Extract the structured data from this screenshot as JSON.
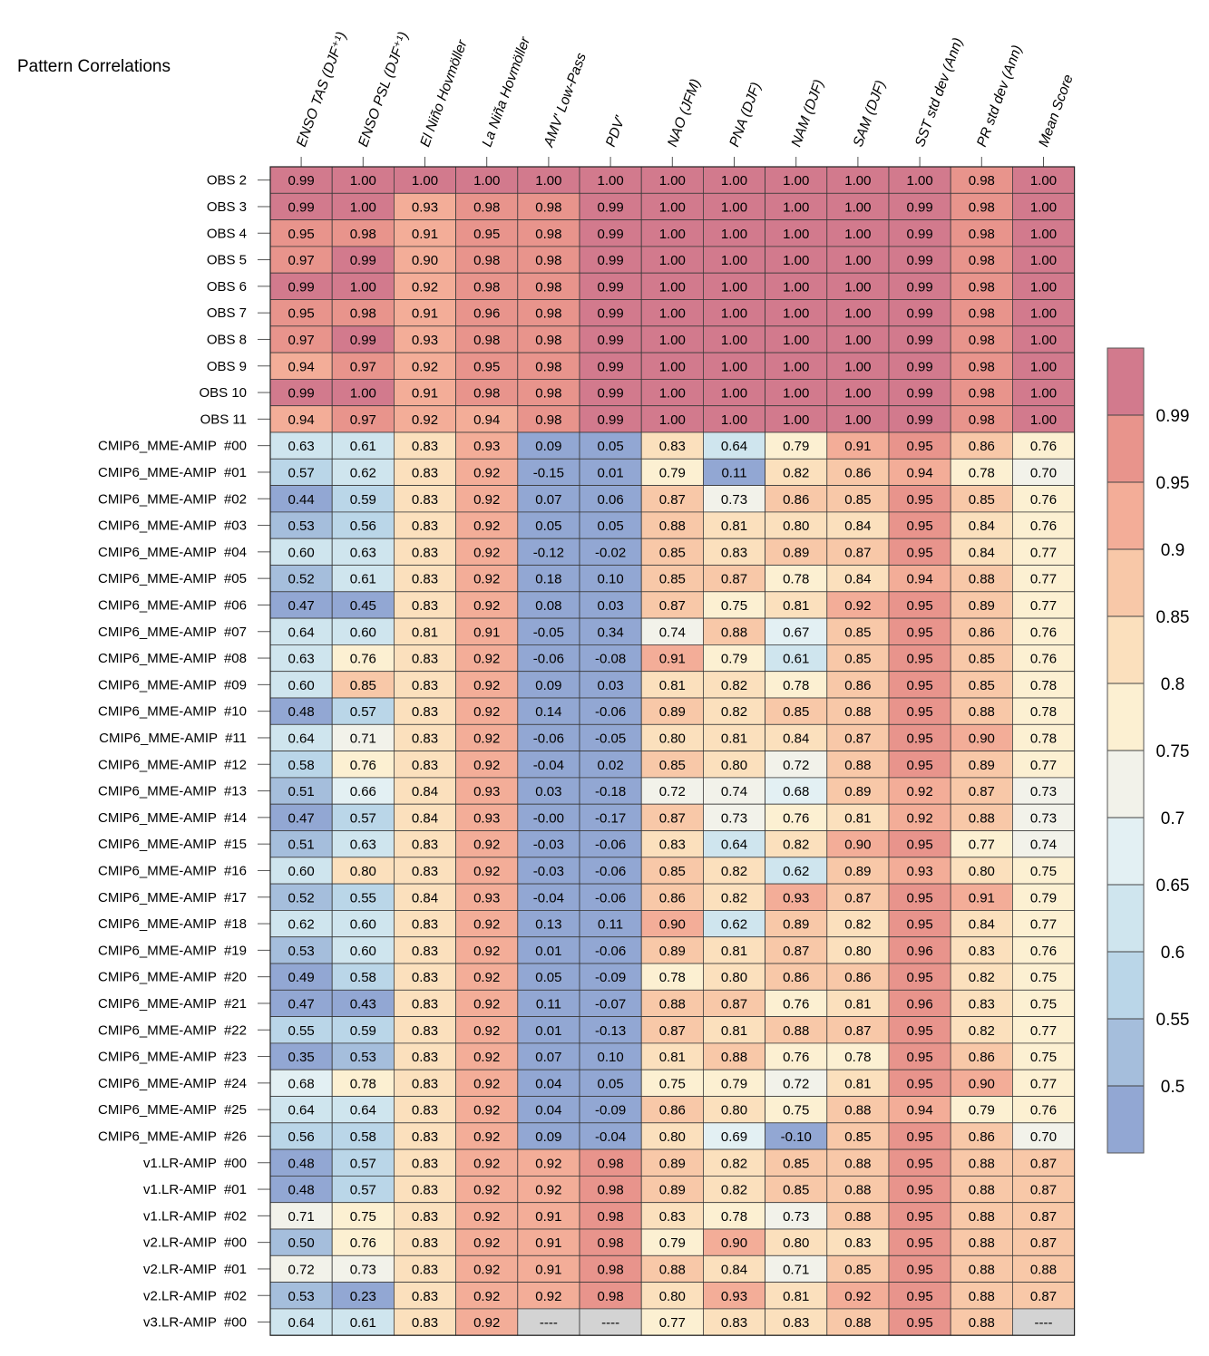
{
  "chart_data": {
    "type": "heatmap",
    "title": "Pattern Correlations",
    "columns": [
      "ENSO TAS (DJF⁺¹)",
      "ENSO PSL (DJF⁺¹)",
      "El Niño Hovmöller",
      "La Niña Hovmöller",
      "AMV' Low-Pass",
      "PDV'",
      "NAO (JFM)",
      "PNA (DJF)",
      "NAM (DJF)",
      "SAM (DJF)",
      "SST std dev (Ann)",
      "PR std dev (Ann)",
      "Mean Score"
    ],
    "rows": [
      {
        "label": "OBS 2",
        "values": [
          "0.99",
          "1.00",
          "1.00",
          "1.00",
          "1.00",
          "1.00",
          "1.00",
          "1.00",
          "1.00",
          "1.00",
          "1.00",
          "0.98",
          "1.00"
        ]
      },
      {
        "label": "OBS 3",
        "values": [
          "0.99",
          "1.00",
          "0.93",
          "0.98",
          "0.98",
          "0.99",
          "1.00",
          "1.00",
          "1.00",
          "1.00",
          "0.99",
          "0.98",
          "1.00"
        ]
      },
      {
        "label": "OBS 4",
        "values": [
          "0.95",
          "0.98",
          "0.91",
          "0.95",
          "0.98",
          "0.99",
          "1.00",
          "1.00",
          "1.00",
          "1.00",
          "0.99",
          "0.98",
          "1.00"
        ]
      },
      {
        "label": "OBS 5",
        "values": [
          "0.97",
          "0.99",
          "0.90",
          "0.98",
          "0.98",
          "0.99",
          "1.00",
          "1.00",
          "1.00",
          "1.00",
          "0.99",
          "0.98",
          "1.00"
        ]
      },
      {
        "label": "OBS 6",
        "values": [
          "0.99",
          "1.00",
          "0.92",
          "0.98",
          "0.98",
          "0.99",
          "1.00",
          "1.00",
          "1.00",
          "1.00",
          "0.99",
          "0.98",
          "1.00"
        ]
      },
      {
        "label": "OBS 7",
        "values": [
          "0.95",
          "0.98",
          "0.91",
          "0.96",
          "0.98",
          "0.99",
          "1.00",
          "1.00",
          "1.00",
          "1.00",
          "0.99",
          "0.98",
          "1.00"
        ]
      },
      {
        "label": "OBS 8",
        "values": [
          "0.97",
          "0.99",
          "0.93",
          "0.98",
          "0.98",
          "0.99",
          "1.00",
          "1.00",
          "1.00",
          "1.00",
          "0.99",
          "0.98",
          "1.00"
        ]
      },
      {
        "label": "OBS 9",
        "values": [
          "0.94",
          "0.97",
          "0.92",
          "0.95",
          "0.98",
          "0.99",
          "1.00",
          "1.00",
          "1.00",
          "1.00",
          "0.99",
          "0.98",
          "1.00"
        ]
      },
      {
        "label": "OBS 10",
        "values": [
          "0.99",
          "1.00",
          "0.91",
          "0.98",
          "0.98",
          "0.99",
          "1.00",
          "1.00",
          "1.00",
          "1.00",
          "0.99",
          "0.98",
          "1.00"
        ]
      },
      {
        "label": "OBS 11",
        "values": [
          "0.94",
          "0.97",
          "0.92",
          "0.94",
          "0.98",
          "0.99",
          "1.00",
          "1.00",
          "1.00",
          "1.00",
          "0.99",
          "0.98",
          "1.00"
        ]
      },
      {
        "label": "CMIP6_MME-AMIP  #00",
        "values": [
          "0.63",
          "0.61",
          "0.83",
          "0.93",
          "0.09",
          "0.05",
          "0.83",
          "0.64",
          "0.79",
          "0.91",
          "0.95",
          "0.86",
          "0.76"
        ]
      },
      {
        "label": "CMIP6_MME-AMIP  #01",
        "values": [
          "0.57",
          "0.62",
          "0.83",
          "0.92",
          "-0.15",
          "0.01",
          "0.79",
          "0.11",
          "0.82",
          "0.86",
          "0.94",
          "0.78",
          "0.70"
        ]
      },
      {
        "label": "CMIP6_MME-AMIP  #02",
        "values": [
          "0.44",
          "0.59",
          "0.83",
          "0.92",
          "0.07",
          "0.06",
          "0.87",
          "0.73",
          "0.86",
          "0.85",
          "0.95",
          "0.85",
          "0.76"
        ]
      },
      {
        "label": "CMIP6_MME-AMIP  #03",
        "values": [
          "0.53",
          "0.56",
          "0.83",
          "0.92",
          "0.05",
          "0.05",
          "0.88",
          "0.81",
          "0.80",
          "0.84",
          "0.95",
          "0.84",
          "0.76"
        ]
      },
      {
        "label": "CMIP6_MME-AMIP  #04",
        "values": [
          "0.60",
          "0.63",
          "0.83",
          "0.92",
          "-0.12",
          "-0.02",
          "0.85",
          "0.83",
          "0.89",
          "0.87",
          "0.95",
          "0.84",
          "0.77"
        ]
      },
      {
        "label": "CMIP6_MME-AMIP  #05",
        "values": [
          "0.52",
          "0.61",
          "0.83",
          "0.92",
          "0.18",
          "0.10",
          "0.85",
          "0.87",
          "0.78",
          "0.84",
          "0.94",
          "0.88",
          "0.77"
        ]
      },
      {
        "label": "CMIP6_MME-AMIP  #06",
        "values": [
          "0.47",
          "0.45",
          "0.83",
          "0.92",
          "0.08",
          "0.03",
          "0.87",
          "0.75",
          "0.81",
          "0.92",
          "0.95",
          "0.89",
          "0.77"
        ]
      },
      {
        "label": "CMIP6_MME-AMIP  #07",
        "values": [
          "0.64",
          "0.60",
          "0.81",
          "0.91",
          "-0.05",
          "0.34",
          "0.74",
          "0.88",
          "0.67",
          "0.85",
          "0.95",
          "0.86",
          "0.76"
        ]
      },
      {
        "label": "CMIP6_MME-AMIP  #08",
        "values": [
          "0.63",
          "0.76",
          "0.83",
          "0.92",
          "-0.06",
          "-0.08",
          "0.91",
          "0.79",
          "0.61",
          "0.85",
          "0.95",
          "0.85",
          "0.76"
        ]
      },
      {
        "label": "CMIP6_MME-AMIP  #09",
        "values": [
          "0.60",
          "0.85",
          "0.83",
          "0.92",
          "0.09",
          "0.03",
          "0.81",
          "0.82",
          "0.78",
          "0.86",
          "0.95",
          "0.85",
          "0.78"
        ]
      },
      {
        "label": "CMIP6_MME-AMIP  #10",
        "values": [
          "0.48",
          "0.57",
          "0.83",
          "0.92",
          "0.14",
          "-0.06",
          "0.89",
          "0.82",
          "0.85",
          "0.88",
          "0.95",
          "0.88",
          "0.78"
        ]
      },
      {
        "label": "CMIP6_MME-AMIP  #11",
        "values": [
          "0.64",
          "0.71",
          "0.83",
          "0.92",
          "-0.06",
          "-0.05",
          "0.80",
          "0.81",
          "0.84",
          "0.87",
          "0.95",
          "0.90",
          "0.78"
        ]
      },
      {
        "label": "CMIP6_MME-AMIP  #12",
        "values": [
          "0.58",
          "0.76",
          "0.83",
          "0.92",
          "-0.04",
          "0.02",
          "0.85",
          "0.80",
          "0.72",
          "0.88",
          "0.95",
          "0.89",
          "0.77"
        ]
      },
      {
        "label": "CMIP6_MME-AMIP  #13",
        "values": [
          "0.51",
          "0.66",
          "0.84",
          "0.93",
          "0.03",
          "-0.18",
          "0.72",
          "0.74",
          "0.68",
          "0.89",
          "0.92",
          "0.87",
          "0.73"
        ]
      },
      {
        "label": "CMIP6_MME-AMIP  #14",
        "values": [
          "0.47",
          "0.57",
          "0.84",
          "0.93",
          "-0.00",
          "-0.17",
          "0.87",
          "0.73",
          "0.76",
          "0.81",
          "0.92",
          "0.88",
          "0.73"
        ]
      },
      {
        "label": "CMIP6_MME-AMIP  #15",
        "values": [
          "0.51",
          "0.63",
          "0.83",
          "0.92",
          "-0.03",
          "-0.06",
          "0.83",
          "0.64",
          "0.82",
          "0.90",
          "0.95",
          "0.77",
          "0.74"
        ]
      },
      {
        "label": "CMIP6_MME-AMIP  #16",
        "values": [
          "0.60",
          "0.80",
          "0.83",
          "0.92",
          "-0.03",
          "-0.06",
          "0.85",
          "0.82",
          "0.62",
          "0.89",
          "0.93",
          "0.80",
          "0.75"
        ]
      },
      {
        "label": "CMIP6_MME-AMIP  #17",
        "values": [
          "0.52",
          "0.55",
          "0.84",
          "0.93",
          "-0.04",
          "-0.06",
          "0.86",
          "0.82",
          "0.93",
          "0.87",
          "0.95",
          "0.91",
          "0.79"
        ]
      },
      {
        "label": "CMIP6_MME-AMIP  #18",
        "values": [
          "0.62",
          "0.60",
          "0.83",
          "0.92",
          "0.13",
          "0.11",
          "0.90",
          "0.62",
          "0.89",
          "0.82",
          "0.95",
          "0.84",
          "0.77"
        ]
      },
      {
        "label": "CMIP6_MME-AMIP  #19",
        "values": [
          "0.53",
          "0.60",
          "0.83",
          "0.92",
          "0.01",
          "-0.06",
          "0.89",
          "0.81",
          "0.87",
          "0.80",
          "0.96",
          "0.83",
          "0.76"
        ]
      },
      {
        "label": "CMIP6_MME-AMIP  #20",
        "values": [
          "0.49",
          "0.58",
          "0.83",
          "0.92",
          "0.05",
          "-0.09",
          "0.78",
          "0.80",
          "0.86",
          "0.86",
          "0.95",
          "0.82",
          "0.75"
        ]
      },
      {
        "label": "CMIP6_MME-AMIP  #21",
        "values": [
          "0.47",
          "0.43",
          "0.83",
          "0.92",
          "0.11",
          "-0.07",
          "0.88",
          "0.87",
          "0.76",
          "0.81",
          "0.96",
          "0.83",
          "0.75"
        ]
      },
      {
        "label": "CMIP6_MME-AMIP  #22",
        "values": [
          "0.55",
          "0.59",
          "0.83",
          "0.92",
          "0.01",
          "-0.13",
          "0.87",
          "0.81",
          "0.88",
          "0.87",
          "0.95",
          "0.82",
          "0.77"
        ]
      },
      {
        "label": "CMIP6_MME-AMIP  #23",
        "values": [
          "0.35",
          "0.53",
          "0.83",
          "0.92",
          "0.07",
          "0.10",
          "0.81",
          "0.88",
          "0.76",
          "0.78",
          "0.95",
          "0.86",
          "0.75"
        ]
      },
      {
        "label": "CMIP6_MME-AMIP  #24",
        "values": [
          "0.68",
          "0.78",
          "0.83",
          "0.92",
          "0.04",
          "0.05",
          "0.75",
          "0.79",
          "0.72",
          "0.81",
          "0.95",
          "0.90",
          "0.77"
        ]
      },
      {
        "label": "CMIP6_MME-AMIP  #25",
        "values": [
          "0.64",
          "0.64",
          "0.83",
          "0.92",
          "0.04",
          "-0.09",
          "0.86",
          "0.80",
          "0.75",
          "0.88",
          "0.94",
          "0.79",
          "0.76"
        ]
      },
      {
        "label": "CMIP6_MME-AMIP  #26",
        "values": [
          "0.56",
          "0.58",
          "0.83",
          "0.92",
          "0.09",
          "-0.04",
          "0.80",
          "0.69",
          "-0.10",
          "0.85",
          "0.95",
          "0.86",
          "0.70"
        ]
      },
      {
        "label": "v1.LR-AMIP  #00",
        "values": [
          "0.48",
          "0.57",
          "0.83",
          "0.92",
          "0.92",
          "0.98",
          "0.89",
          "0.82",
          "0.85",
          "0.88",
          "0.95",
          "0.88",
          "0.87"
        ]
      },
      {
        "label": "v1.LR-AMIP  #01",
        "values": [
          "0.48",
          "0.57",
          "0.83",
          "0.92",
          "0.92",
          "0.98",
          "0.89",
          "0.82",
          "0.85",
          "0.88",
          "0.95",
          "0.88",
          "0.87"
        ]
      },
      {
        "label": "v1.LR-AMIP  #02",
        "values": [
          "0.71",
          "0.75",
          "0.83",
          "0.92",
          "0.91",
          "0.98",
          "0.83",
          "0.78",
          "0.73",
          "0.88",
          "0.95",
          "0.88",
          "0.87"
        ]
      },
      {
        "label": "v2.LR-AMIP  #00",
        "values": [
          "0.50",
          "0.76",
          "0.83",
          "0.92",
          "0.91",
          "0.98",
          "0.79",
          "0.90",
          "0.80",
          "0.83",
          "0.95",
          "0.88",
          "0.87"
        ]
      },
      {
        "label": "v2.LR-AMIP  #01",
        "values": [
          "0.72",
          "0.73",
          "0.83",
          "0.92",
          "0.91",
          "0.98",
          "0.88",
          "0.84",
          "0.71",
          "0.85",
          "0.95",
          "0.88",
          "0.88"
        ]
      },
      {
        "label": "v2.LR-AMIP  #02",
        "values": [
          "0.53",
          "0.23",
          "0.83",
          "0.92",
          "0.92",
          "0.98",
          "0.80",
          "0.93",
          "0.81",
          "0.92",
          "0.95",
          "0.88",
          "0.87"
        ]
      },
      {
        "label": "v3.LR-AMIP  #00",
        "values": [
          "0.64",
          "0.61",
          "0.83",
          "0.92",
          "----",
          "----",
          "0.77",
          "0.83",
          "0.83",
          "0.88",
          "0.95",
          "0.88",
          "----"
        ]
      }
    ],
    "missing_text": "----",
    "colorbar": {
      "boundaries": [
        0.99,
        0.95,
        0.9,
        0.85,
        0.8,
        0.75,
        0.7,
        0.65,
        0.6,
        0.55,
        0.5
      ],
      "labels": [
        "0.99",
        "0.95",
        "0.9",
        "0.85",
        "0.8",
        "0.75",
        "0.7",
        "0.65",
        "0.6",
        "0.55",
        "0.5"
      ],
      "colors": [
        "#d27a8d",
        "#e8948c",
        "#f3ad98",
        "#f8c8a8",
        "#fbe0bd",
        "#fcf0d2",
        "#f2f2ea",
        "#e3f0f3",
        "#cfe5ee",
        "#bad6e8",
        "#a5bedc",
        "#92a7d3"
      ],
      "missing_color": "#d3d3d3"
    }
  }
}
